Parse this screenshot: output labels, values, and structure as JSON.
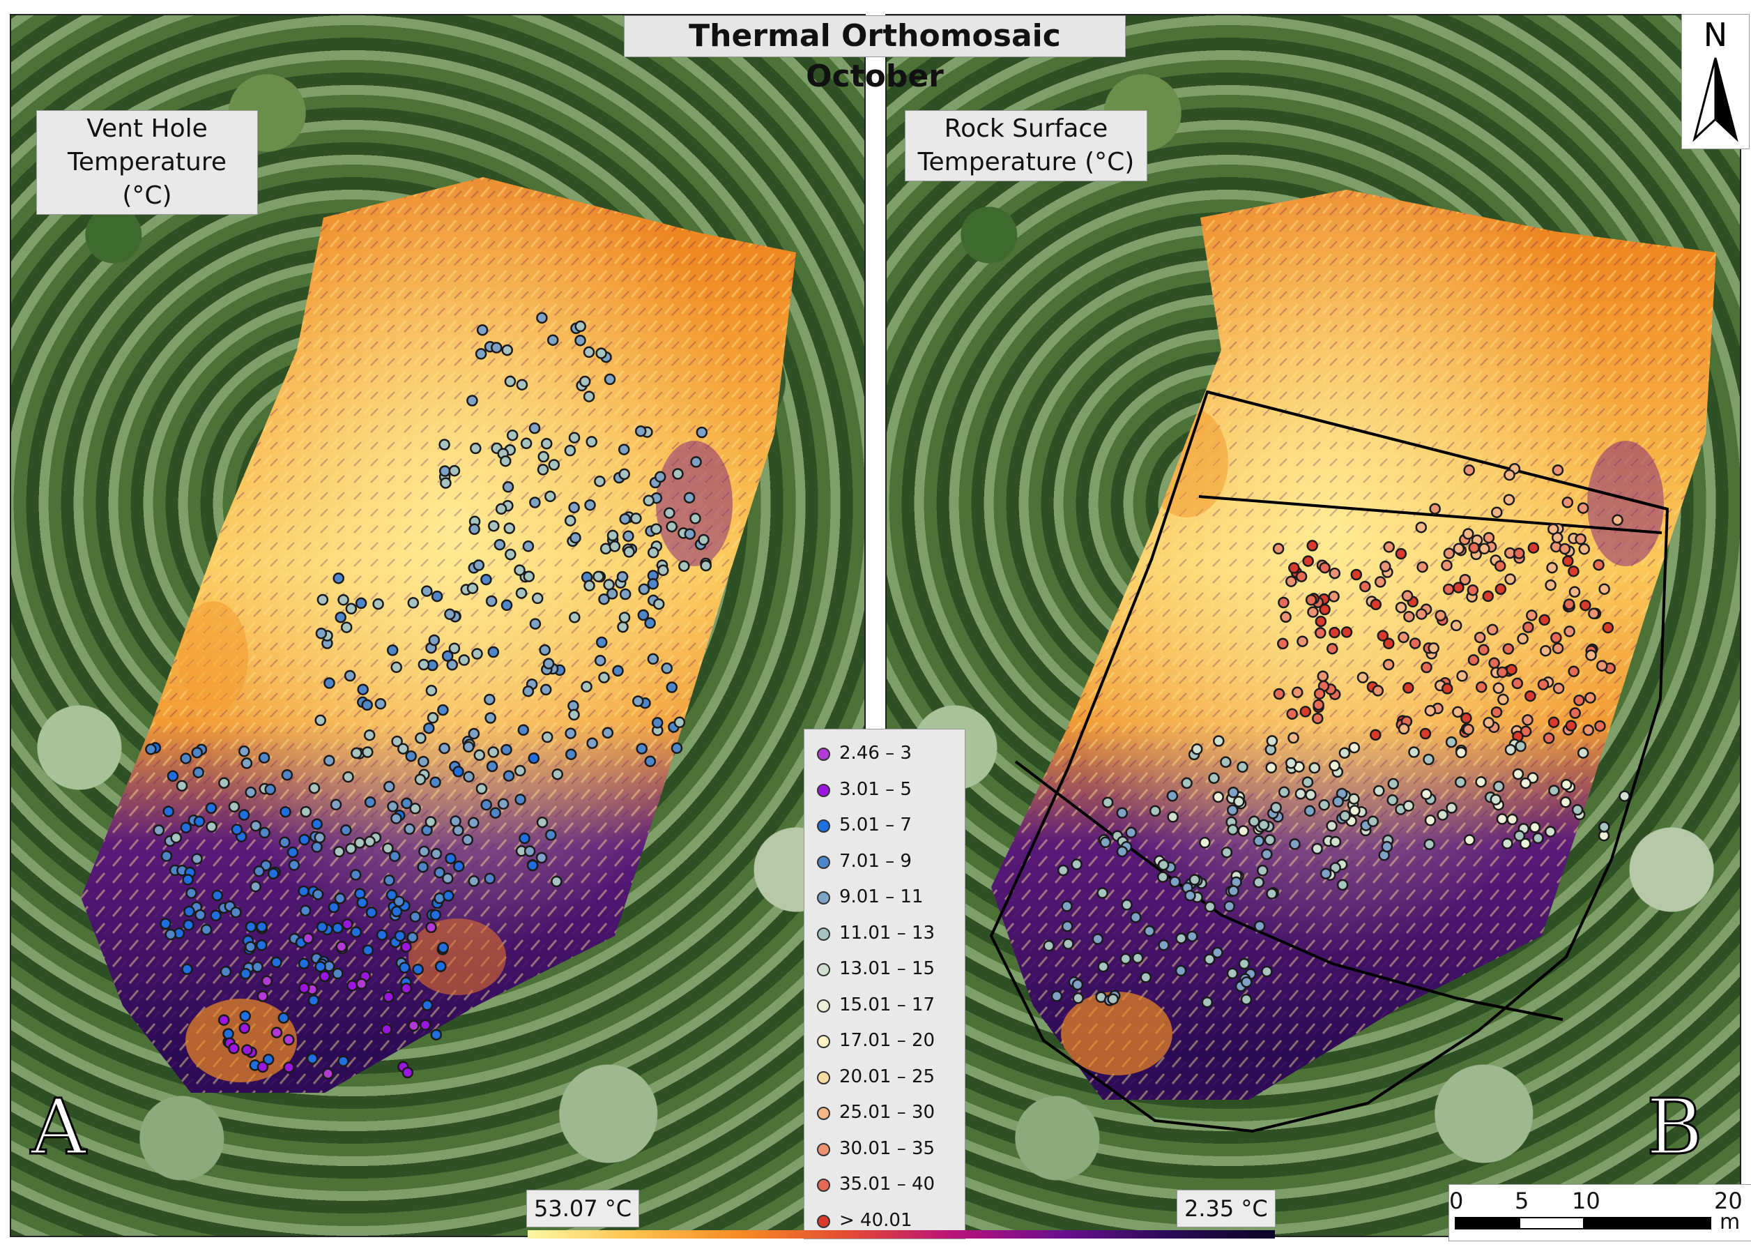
{
  "title": "Thermal Orthomosaic October",
  "panel_a": {
    "label": "Vent Hole\nTemperature (°C)",
    "letter": "A"
  },
  "panel_b": {
    "label": "Rock Surface\nTemperature (°C)",
    "letter": "B"
  },
  "north_label": "N",
  "legend": {
    "items": [
      {
        "label": "2.46 – 3",
        "color": "#b23ad6"
      },
      {
        "label": "3.01 – 5",
        "color": "#9b16e0"
      },
      {
        "label": "5.01 – 7",
        "color": "#1f6fe0"
      },
      {
        "label": "7.01 – 9",
        "color": "#4f86c9"
      },
      {
        "label": "9.01 – 11",
        "color": "#7fa3c6"
      },
      {
        "label": "11.01 – 13",
        "color": "#a8c4c0"
      },
      {
        "label": "13.01 – 15",
        "color": "#d2e0d2"
      },
      {
        "label": "15.01 – 17",
        "color": "#eef2d8"
      },
      {
        "label": "17.01 – 20",
        "color": "#fbf3c4"
      },
      {
        "label": "20.01 – 25",
        "color": "#f9dca0"
      },
      {
        "label": "25.01 – 30",
        "color": "#f4b888"
      },
      {
        "label": "30.01 – 35",
        "color": "#ec9373"
      },
      {
        "label": "35.01 – 40",
        "color": "#e66a55"
      },
      {
        "label": "> 40.01",
        "color": "#d93a2b"
      }
    ]
  },
  "colorbar": {
    "max_label": "53.07 °C",
    "min_label": "2.35 °C"
  },
  "scalebar": {
    "ticks": [
      "0",
      "5",
      "10",
      "20"
    ],
    "unit": "m"
  }
}
